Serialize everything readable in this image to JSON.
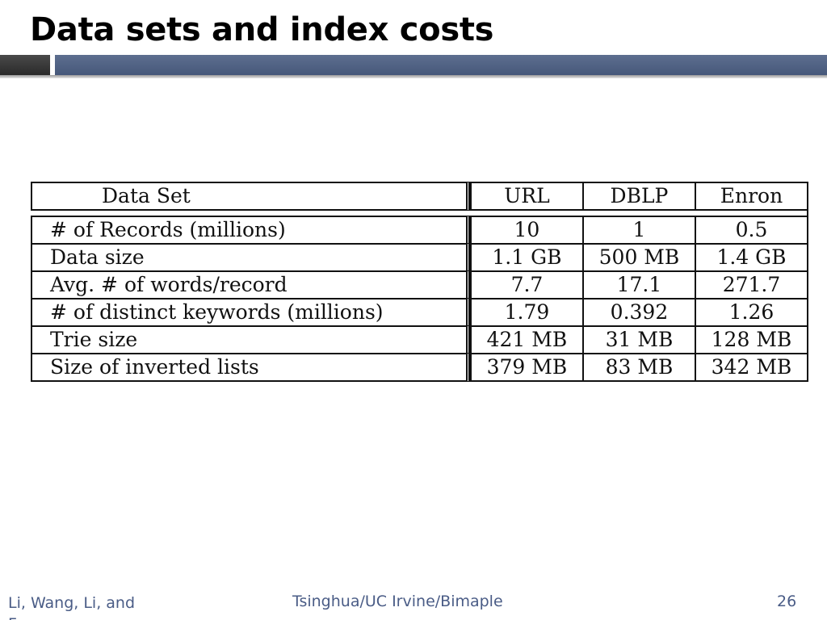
{
  "slide": {
    "title": "Data sets and index costs"
  },
  "table": {
    "header": [
      "Data Set",
      "URL",
      "DBLP",
      "Enron"
    ],
    "rows": [
      {
        "label": "# of Records (millions)",
        "values": [
          "10",
          "1",
          "0.5"
        ]
      },
      {
        "label": "Data size",
        "values": [
          "1.1 GB",
          "500 MB",
          "1.4 GB"
        ]
      },
      {
        "label": "Avg. # of words/record",
        "values": [
          "7.7",
          "17.1",
          "271.7"
        ]
      },
      {
        "label": "# of distinct keywords (millions)",
        "values": [
          "1.79",
          "0.392",
          "1.26"
        ]
      },
      {
        "label": "Trie size",
        "values": [
          "421 MB",
          "31 MB",
          "128 MB"
        ]
      },
      {
        "label": "Size of inverted lists",
        "values": [
          "379 MB",
          "83 MB",
          "342 MB"
        ]
      }
    ]
  },
  "footer": {
    "left": "Li, Wang, Li, and Feng",
    "center": "Tsinghua/UC Irvine/Bimaple",
    "page_number": "26"
  }
}
